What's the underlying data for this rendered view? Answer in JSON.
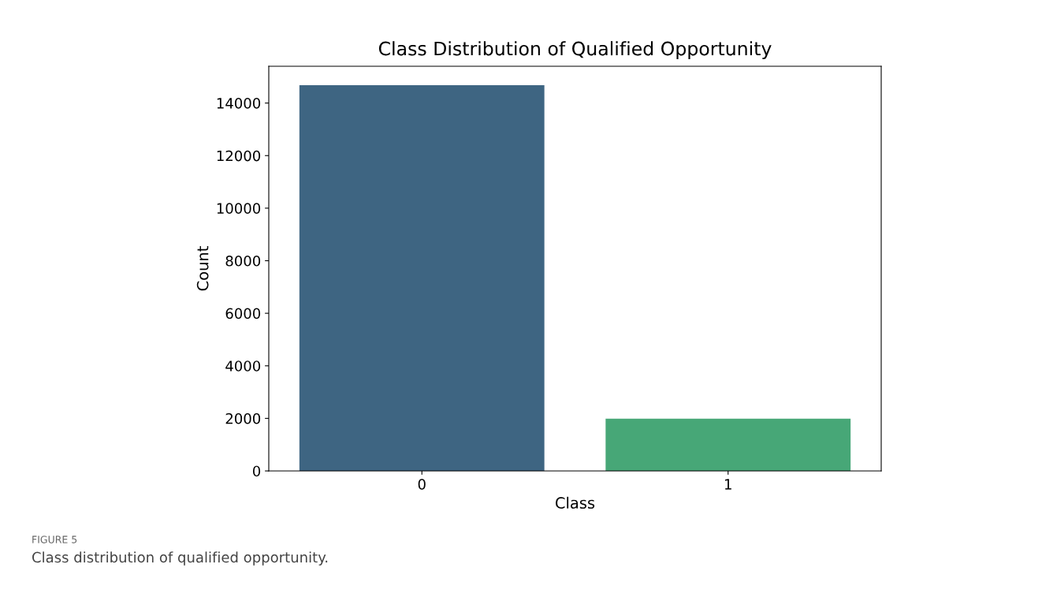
{
  "chart_data": {
    "type": "bar",
    "title": "Class Distribution of Qualified Opportunity",
    "xlabel": "Class",
    "ylabel": "Count",
    "categories": [
      "0",
      "1"
    ],
    "series": [
      {
        "colors": [
          "#3e6582",
          "#47a777"
        ],
        "values": [
          14680,
          1990
        ]
      }
    ],
    "ylim": [
      0,
      15400
    ],
    "yticks": [
      0,
      2000,
      4000,
      6000,
      8000,
      10000,
      12000,
      14000
    ],
    "grid": false,
    "legend": false,
    "annotations": [
      "FIGURE 5",
      "Class distribution of qualified opportunity."
    ]
  }
}
